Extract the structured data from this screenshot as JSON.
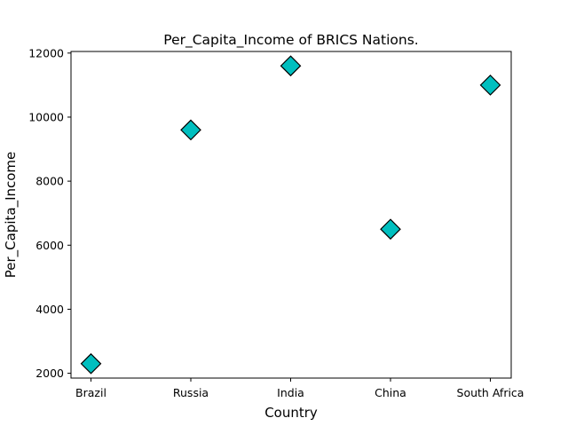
{
  "chart_data": {
    "type": "scatter",
    "title": "Per_Capita_Income of BRICS Nations.",
    "xlabel": "Country",
    "ylabel": "Per_Capita_Income",
    "categories": [
      "Brazil",
      "Russia",
      "India",
      "China",
      "South Africa"
    ],
    "values": [
      2300,
      9600,
      11600,
      6500,
      11000
    ],
    "ylim": [
      1850,
      12050
    ],
    "yticks": [
      2000,
      4000,
      6000,
      8000,
      10000,
      12000
    ],
    "ytick_labels": [
      "2000",
      "4000",
      "6000",
      "8000",
      "10000",
      "12000"
    ],
    "grid": false,
    "marker": "diamond",
    "marker_color": "#00bfbf",
    "marker_edge_color": "#000000"
  }
}
